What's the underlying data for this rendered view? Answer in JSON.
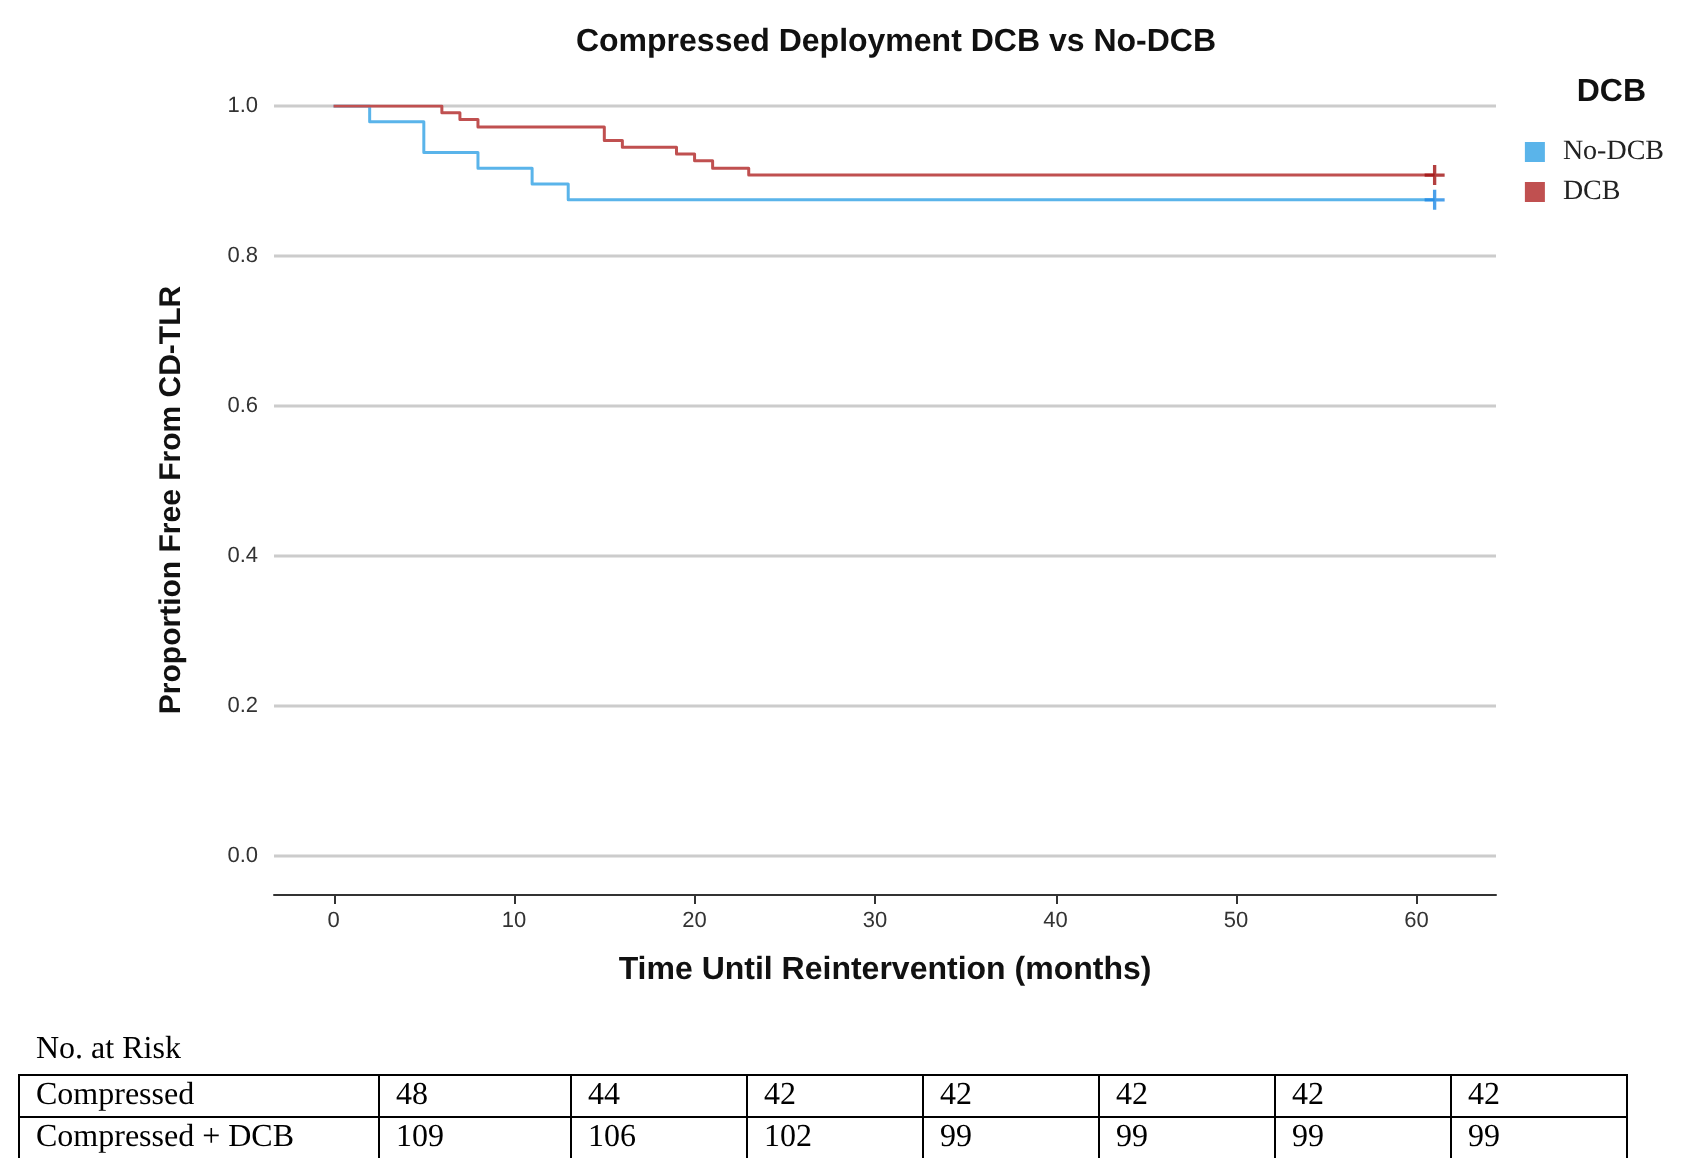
{
  "chart_data": {
    "type": "step",
    "title": "Compressed Deployment DCB vs No-DCB",
    "xlabel": "Time Until Reintervention (months)",
    "ylabel": "Proportion Free From CD-TLR",
    "legend_title": "DCB",
    "series": [
      {
        "name": "No-DCB",
        "color": "#5ab4ea",
        "x": [
          0,
          2,
          5,
          8,
          11,
          13,
          61
        ],
        "values": [
          1.0,
          0.979,
          0.938,
          0.917,
          0.896,
          0.875,
          0.875
        ]
      },
      {
        "name": "DCB",
        "color": "#c05050",
        "x": [
          0,
          6,
          7,
          8,
          15,
          16,
          19,
          20,
          21,
          23,
          61
        ],
        "values": [
          1.0,
          0.991,
          0.982,
          0.972,
          0.954,
          0.945,
          0.936,
          0.927,
          0.917,
          0.908,
          0.908
        ]
      },
      {
        "type": "scatter",
        "marker": "cross",
        "color": "#1e88e5",
        "x": [
          61
        ],
        "values": [
          0.875
        ]
      },
      {
        "type": "scatter",
        "marker": "cross",
        "color": "#a01010",
        "x": [
          61
        ],
        "values": [
          0.908
        ]
      }
    ],
    "xlim": [
      -3.3,
      64.4
    ],
    "xticks": [
      0,
      10,
      20,
      30,
      40,
      50,
      60
    ],
    "ylim": [
      -0.05,
      1.0
    ],
    "yticks": [
      {
        "value": 0,
        "label": "0.0"
      },
      {
        "value": 0.2,
        "label": "0.2"
      },
      {
        "value": 0.4,
        "label": "0.4"
      },
      {
        "value": 0.6,
        "label": "0.6"
      },
      {
        "value": 0.8,
        "label": "0.8"
      },
      {
        "value": 1,
        "label": "1.0"
      }
    ],
    "grid": "y",
    "legend": "top right",
    "annotations": [
      "No. at Risk",
      "Compressed",
      "48",
      "44",
      "42",
      "42",
      "42",
      "42",
      "42",
      "Compressed + DCB",
      "109",
      "106",
      "102",
      "99",
      "99",
      "99",
      "99"
    ]
  }
}
